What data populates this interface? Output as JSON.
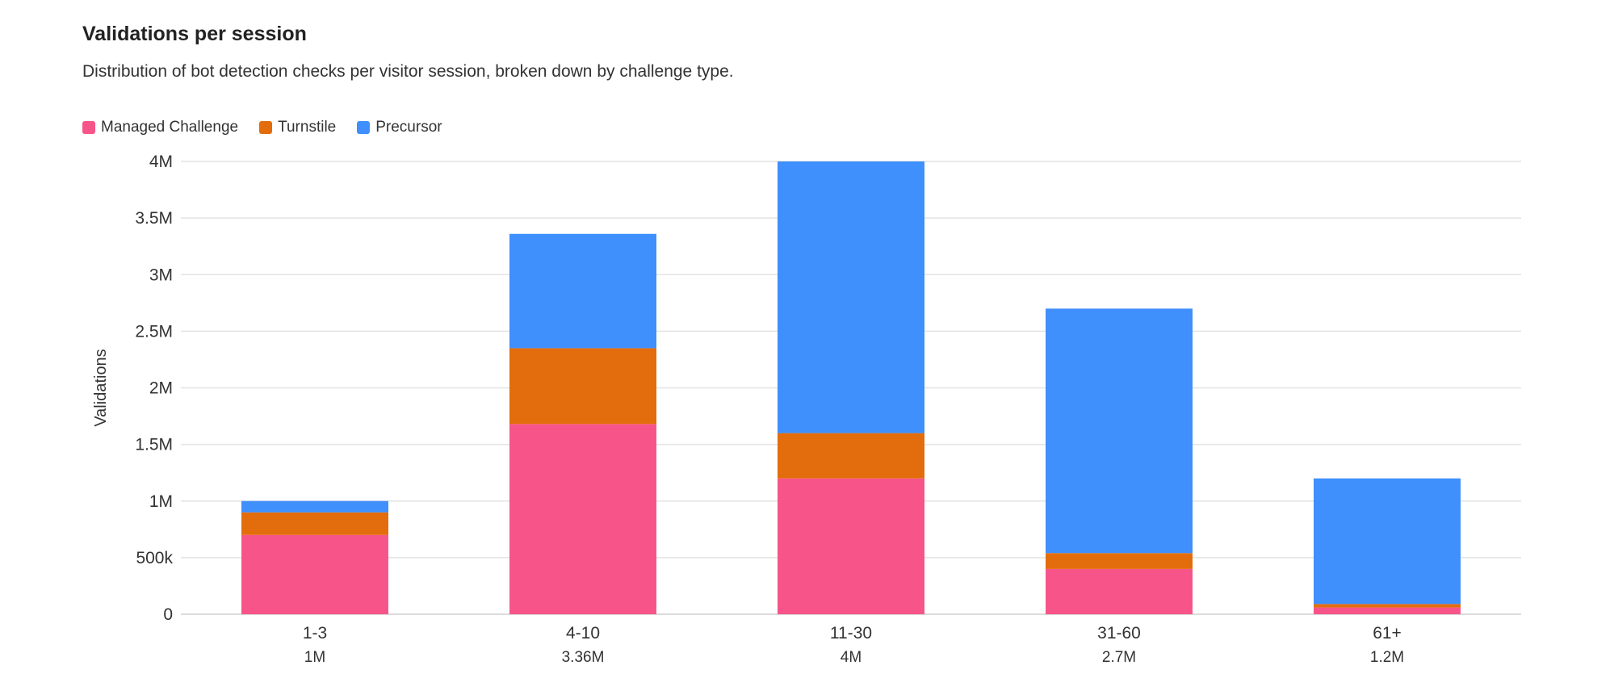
{
  "header": {
    "title": "Validations per session",
    "subtitle": "Distribution of bot detection checks per visitor session, broken down by challenge type."
  },
  "legend": {
    "items": [
      {
        "label": "Managed Challenge",
        "color": "#f7558a"
      },
      {
        "label": "Turnstile",
        "color": "#e36d0c"
      },
      {
        "label": "Precursor",
        "color": "#3f8ffd"
      }
    ]
  },
  "chart_data": {
    "type": "bar",
    "stacked": true,
    "title": "Validations per session",
    "subtitle": "Distribution of bot detection checks per visitor session, broken down by challenge type.",
    "xlabel": "",
    "ylabel": "Validations",
    "ylim": [
      0,
      4000000
    ],
    "yticks": [
      {
        "value": 0,
        "label": "0"
      },
      {
        "value": 500000,
        "label": "500k"
      },
      {
        "value": 1000000,
        "label": "1M"
      },
      {
        "value": 1500000,
        "label": "1.5M"
      },
      {
        "value": 2000000,
        "label": "2M"
      },
      {
        "value": 2500000,
        "label": "2.5M"
      },
      {
        "value": 3000000,
        "label": "3M"
      },
      {
        "value": 3500000,
        "label": "3.5M"
      },
      {
        "value": 4000000,
        "label": "4M"
      }
    ],
    "grid": true,
    "legend_position": "top-left",
    "categories": [
      "1-3",
      "4-10",
      "11-30",
      "31-60",
      "61+"
    ],
    "totals": [
      "1M",
      "3.36M",
      "4M",
      "2.7M",
      "1.2M"
    ],
    "series": [
      {
        "name": "Managed Challenge",
        "color": "#f7558a",
        "values": [
          700000,
          1680000,
          1200000,
          400000,
          60000
        ]
      },
      {
        "name": "Turnstile",
        "color": "#e36d0c",
        "values": [
          200000,
          670000,
          400000,
          140000,
          30000
        ]
      },
      {
        "name": "Precursor",
        "color": "#3f8ffd",
        "values": [
          100000,
          1010000,
          2400000,
          2160000,
          1110000
        ]
      }
    ]
  }
}
